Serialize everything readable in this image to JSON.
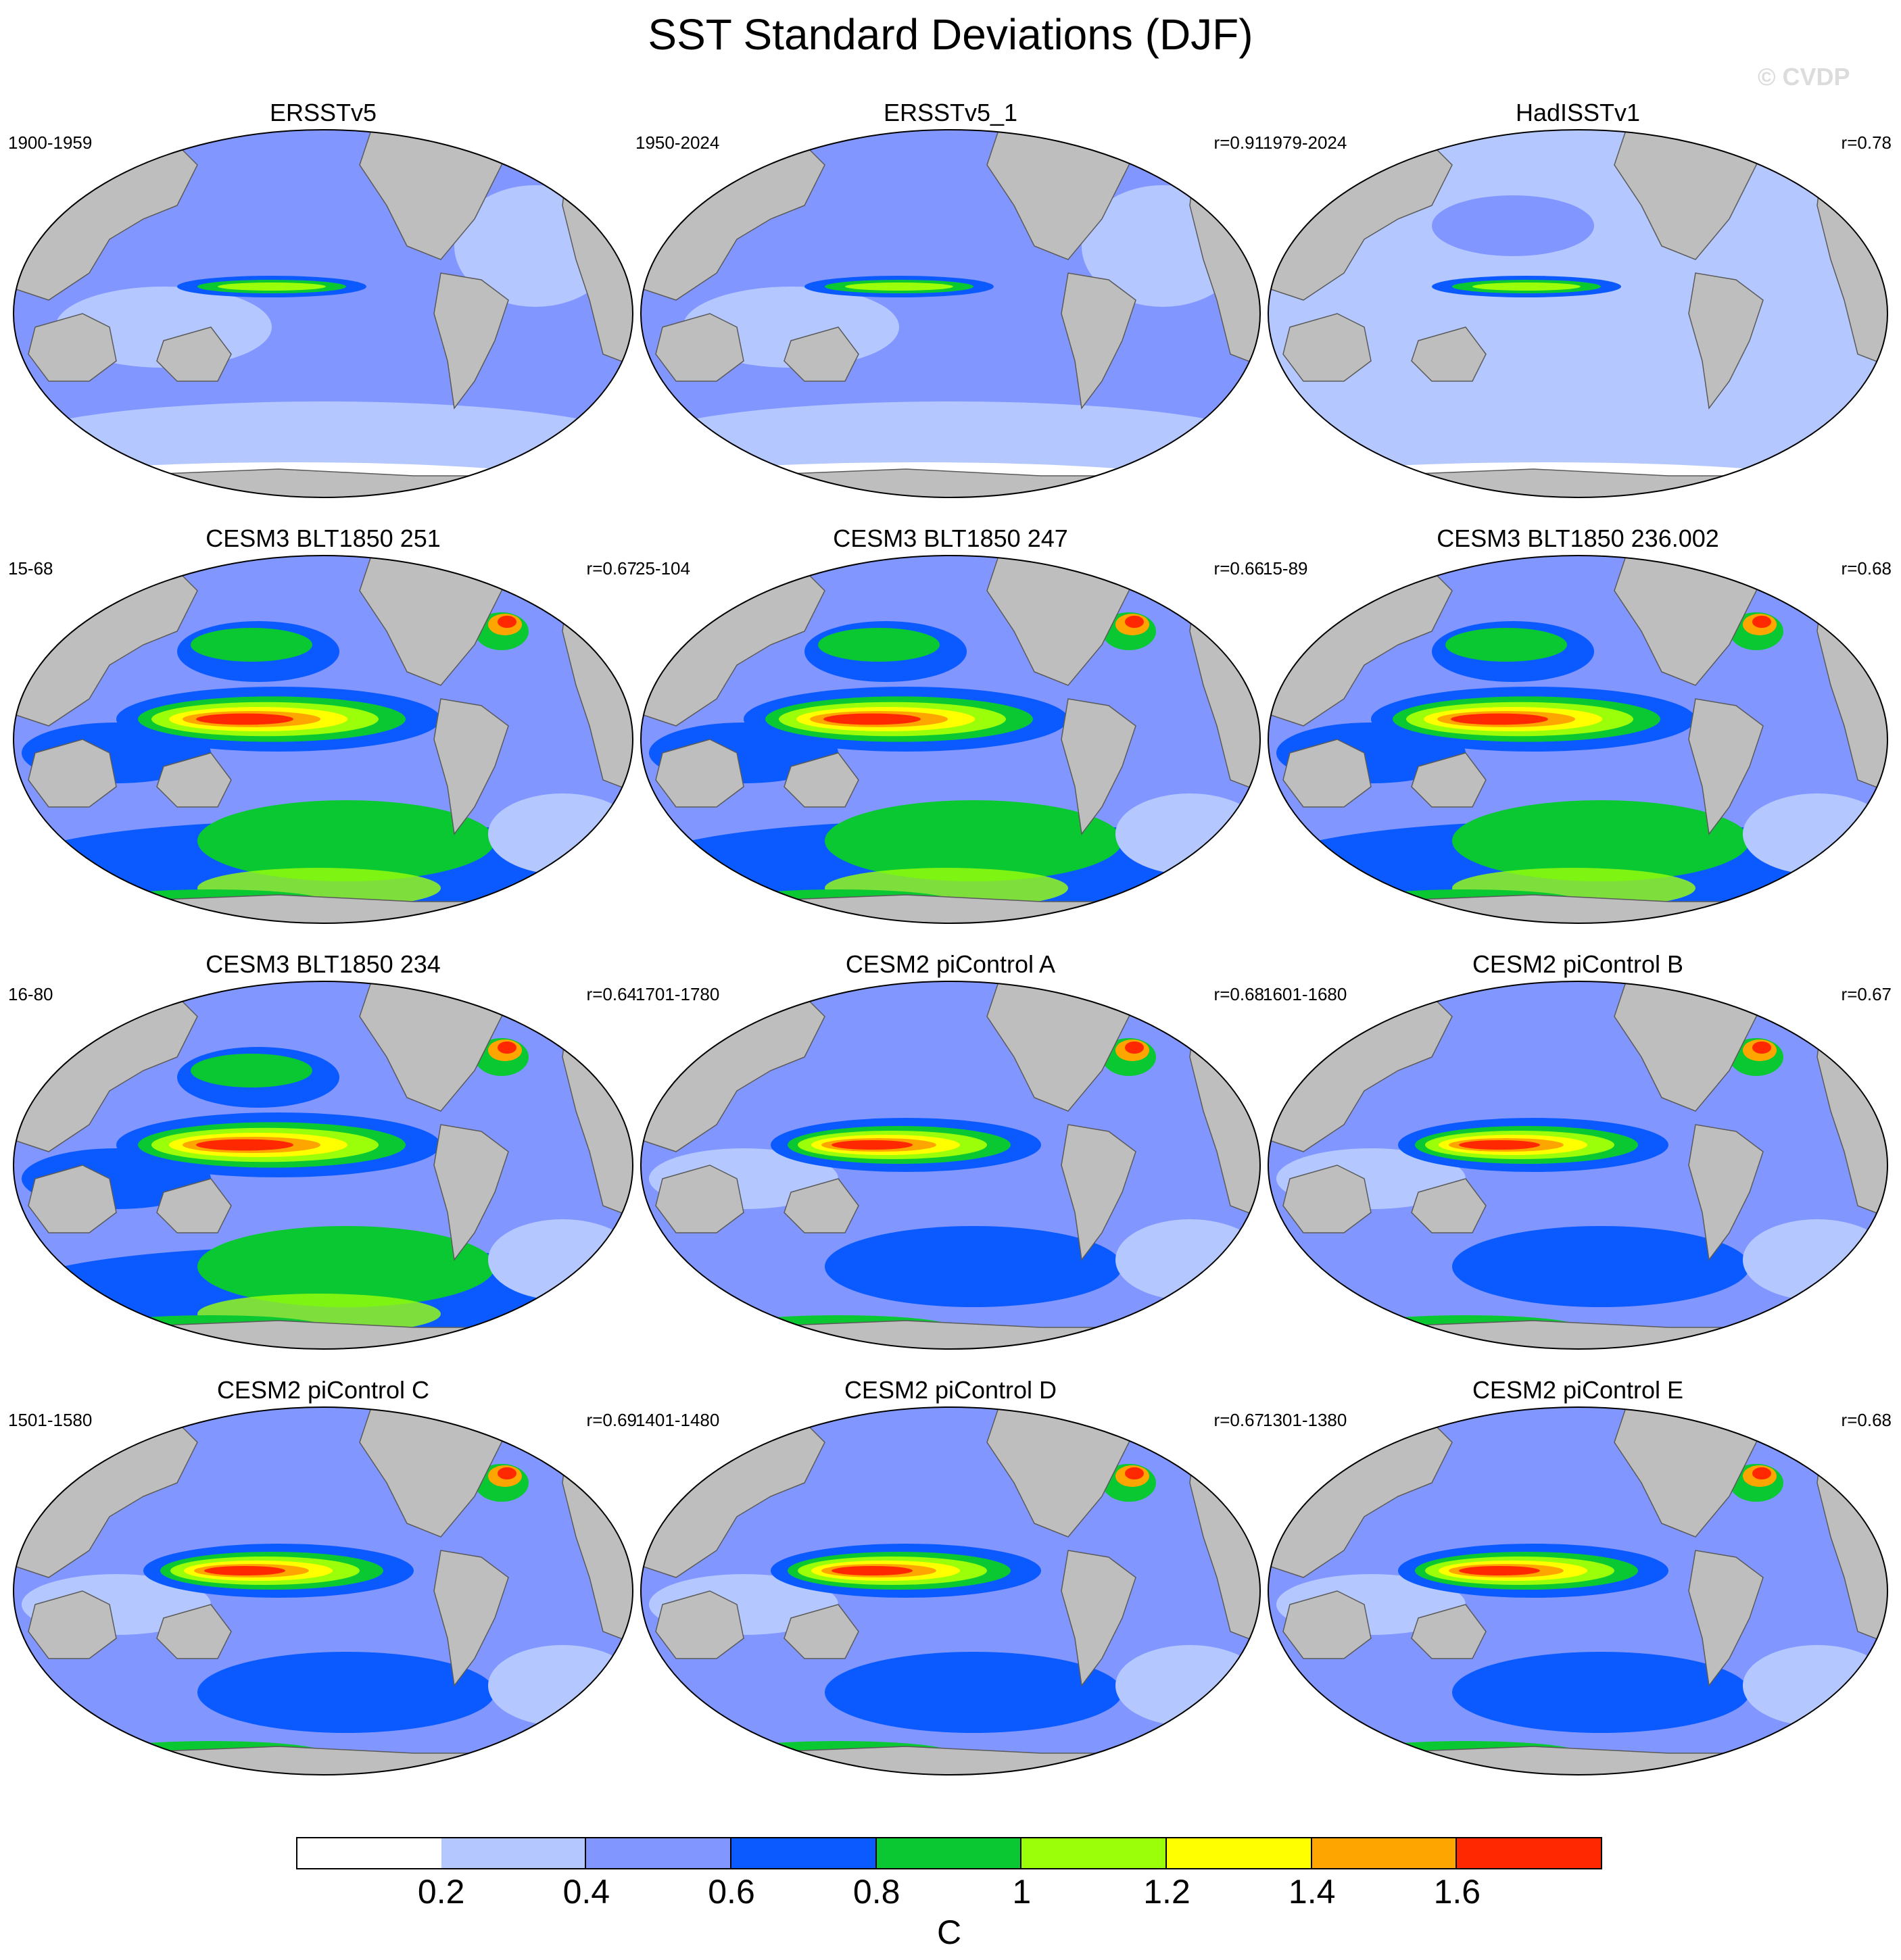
{
  "title": "SST Standard Deviations (DJF)",
  "watermark": "© CVDP",
  "panels": [
    {
      "name": "ERSSTv5",
      "period": "1900-1959",
      "r": ""
    },
    {
      "name": "ERSSTv5_1",
      "period": "1950-2024",
      "r": "r=0.91"
    },
    {
      "name": "HadISSTv1",
      "period": "1979-2024",
      "r": "r=0.78"
    },
    {
      "name": "CESM3 BLT1850 251",
      "period": "15-68",
      "r": "r=0.67"
    },
    {
      "name": "CESM3 BLT1850 247",
      "period": "25-104",
      "r": "r=0.66"
    },
    {
      "name": "CESM3 BLT1850 236.002",
      "period": "15-89",
      "r": "r=0.68"
    },
    {
      "name": "CESM3 BLT1850 234",
      "period": "16-80",
      "r": "r=0.64"
    },
    {
      "name": "CESM2 piControl A",
      "period": "1701-1780",
      "r": "r=0.68"
    },
    {
      "name": "CESM2 piControl B",
      "period": "1601-1680",
      "r": "r=0.67"
    },
    {
      "name": "CESM2 piControl C",
      "period": "1501-1580",
      "r": "r=0.69"
    },
    {
      "name": "CESM2 piControl D",
      "period": "1401-1480",
      "r": "r=0.67"
    },
    {
      "name": "CESM2 piControl E",
      "period": "1301-1380",
      "r": "r=0.68"
    }
  ],
  "colorbar": {
    "unit": "C",
    "ticks": [
      "0.2",
      "0.4",
      "0.6",
      "0.8",
      "1",
      "1.2",
      "1.4",
      "1.6"
    ],
    "colors": [
      "#ffffff",
      "#b4c8ff",
      "#8296ff",
      "#0a5aff",
      "#0ac832",
      "#9bff0a",
      "#ffff00",
      "#ffa500",
      "#ff2800"
    ]
  },
  "colors": {
    "land": "#bebebe",
    "coast": "#5a5a5a"
  }
}
